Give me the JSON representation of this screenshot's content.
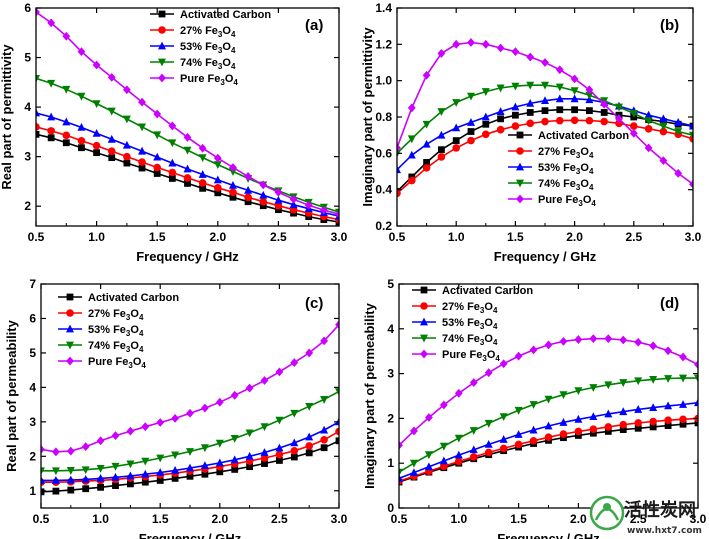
{
  "chart_data": [
    {
      "type": "line",
      "panel": "(a)",
      "xlabel": "Frequency / GHz",
      "ylabel": "Real part of permittivity",
      "xlim": [
        0.5,
        3.0
      ],
      "ylim": [
        1.6,
        6.0
      ],
      "xticks": [
        "0.5",
        "1.0",
        "1.5",
        "2.0",
        "2.5",
        "3.0"
      ],
      "yticks": [
        "2",
        "3",
        "4",
        "5",
        "6"
      ],
      "legend_position": "top-center",
      "x": [
        0.5,
        0.625,
        0.75,
        0.875,
        1.0,
        1.125,
        1.25,
        1.375,
        1.5,
        1.625,
        1.75,
        1.875,
        2.0,
        2.125,
        2.25,
        2.375,
        2.5,
        2.625,
        2.75,
        2.875,
        3.0
      ],
      "series": [
        {
          "name": "Activated Carbon",
          "color": "#000000",
          "marker": "square",
          "values": [
            3.45,
            3.38,
            3.28,
            3.18,
            3.08,
            2.98,
            2.87,
            2.77,
            2.66,
            2.56,
            2.46,
            2.36,
            2.27,
            2.18,
            2.09,
            2.01,
            1.93,
            1.86,
            1.79,
            1.73,
            1.68
          ]
        },
        {
          "name": "27% Fe3O4",
          "color": "#ff0000",
          "marker": "circle",
          "values": [
            3.6,
            3.52,
            3.43,
            3.32,
            3.22,
            3.11,
            3.0,
            2.89,
            2.78,
            2.68,
            2.57,
            2.47,
            2.37,
            2.28,
            2.18,
            2.09,
            2.01,
            1.93,
            1.86,
            1.79,
            1.73
          ]
        },
        {
          "name": "53% Fe3O4",
          "color": "#0000ff",
          "marker": "triangle-up",
          "values": [
            3.88,
            3.8,
            3.7,
            3.59,
            3.47,
            3.35,
            3.23,
            3.11,
            2.99,
            2.87,
            2.75,
            2.64,
            2.53,
            2.42,
            2.32,
            2.22,
            2.12,
            2.03,
            1.95,
            1.87,
            1.8
          ]
        },
        {
          "name": "74% Fe3O4",
          "color": "#008000",
          "marker": "triangle-down",
          "values": [
            4.58,
            4.48,
            4.36,
            4.22,
            4.07,
            3.92,
            3.76,
            3.6,
            3.44,
            3.28,
            3.13,
            2.98,
            2.84,
            2.7,
            2.56,
            2.43,
            2.31,
            2.19,
            2.08,
            1.98,
            1.88
          ]
        },
        {
          "name": "Pure Fe3O4",
          "color": "#cc00ff",
          "marker": "diamond",
          "values": [
            5.92,
            5.7,
            5.43,
            5.12,
            4.85,
            4.6,
            4.35,
            4.1,
            3.86,
            3.62,
            3.39,
            3.17,
            2.97,
            2.78,
            2.6,
            2.43,
            2.28,
            2.14,
            2.02,
            1.92,
            1.84
          ]
        }
      ]
    },
    {
      "type": "line",
      "panel": "(b)",
      "xlabel": "Frequency / GHz",
      "ylabel": "Imaginary part of permittivity",
      "xlim": [
        0.5,
        3.0
      ],
      "ylim": [
        0.2,
        1.4
      ],
      "xticks": [
        "0.5",
        "1.0",
        "1.5",
        "2.0",
        "2.5",
        "3.0"
      ],
      "yticks": [
        "0.2",
        "0.4",
        "0.6",
        "0.8",
        "1.0",
        "1.2",
        "1.4"
      ],
      "legend_position": "lower-left",
      "x": [
        0.5,
        0.625,
        0.75,
        0.875,
        1.0,
        1.125,
        1.25,
        1.375,
        1.5,
        1.625,
        1.75,
        1.875,
        2.0,
        2.125,
        2.25,
        2.375,
        2.5,
        2.625,
        2.75,
        2.875,
        3.0
      ],
      "series": [
        {
          "name": "Activated Carbon",
          "color": "#000000",
          "marker": "square",
          "values": [
            0.39,
            0.47,
            0.55,
            0.62,
            0.67,
            0.72,
            0.76,
            0.79,
            0.81,
            0.825,
            0.835,
            0.84,
            0.84,
            0.835,
            0.825,
            0.81,
            0.8,
            0.785,
            0.775,
            0.76,
            0.75
          ]
        },
        {
          "name": "27% Fe3O4",
          "color": "#ff0000",
          "marker": "circle",
          "values": [
            0.38,
            0.45,
            0.52,
            0.58,
            0.63,
            0.67,
            0.705,
            0.73,
            0.75,
            0.765,
            0.775,
            0.78,
            0.782,
            0.78,
            0.775,
            0.765,
            0.75,
            0.735,
            0.72,
            0.705,
            0.68
          ]
        },
        {
          "name": "53% Fe3O4",
          "color": "#0000ff",
          "marker": "triangle-up",
          "values": [
            0.51,
            0.59,
            0.65,
            0.7,
            0.74,
            0.77,
            0.8,
            0.83,
            0.855,
            0.875,
            0.89,
            0.9,
            0.9,
            0.895,
            0.88,
            0.86,
            0.835,
            0.81,
            0.79,
            0.77,
            0.75
          ]
        },
        {
          "name": "74% Fe3O4",
          "color": "#008000",
          "marker": "triangle-down",
          "values": [
            0.6,
            0.68,
            0.76,
            0.83,
            0.88,
            0.915,
            0.94,
            0.96,
            0.97,
            0.975,
            0.975,
            0.965,
            0.945,
            0.92,
            0.89,
            0.855,
            0.82,
            0.78,
            0.75,
            0.72,
            0.7
          ]
        },
        {
          "name": "Pure Fe3O4",
          "color": "#cc00ff",
          "marker": "diamond",
          "values": [
            0.63,
            0.85,
            1.03,
            1.15,
            1.2,
            1.21,
            1.2,
            1.18,
            1.16,
            1.13,
            1.1,
            1.06,
            1.01,
            0.95,
            0.87,
            0.79,
            0.71,
            0.63,
            0.56,
            0.49,
            0.43
          ]
        }
      ]
    },
    {
      "type": "line",
      "panel": "(c)",
      "xlabel": "Frequency / GHz",
      "ylabel": "Real part of permeability",
      "xlim": [
        0.5,
        3.0
      ],
      "ylim": [
        0.5,
        7.0
      ],
      "xticks": [
        "0.5",
        "1.0",
        "1.5",
        "2.0",
        "2.5",
        "3.0"
      ],
      "yticks": [
        "1",
        "2",
        "3",
        "4",
        "5",
        "6",
        "7"
      ],
      "legend_position": "top-left",
      "x": [
        0.5,
        0.625,
        0.75,
        0.875,
        1.0,
        1.125,
        1.25,
        1.375,
        1.5,
        1.625,
        1.75,
        1.875,
        2.0,
        2.125,
        2.25,
        2.375,
        2.5,
        2.625,
        2.75,
        2.875,
        3.0
      ],
      "series": [
        {
          "name": "Activated Carbon",
          "color": "#000000",
          "marker": "square",
          "values": [
            0.97,
            0.99,
            1.02,
            1.06,
            1.1,
            1.15,
            1.2,
            1.25,
            1.3,
            1.36,
            1.42,
            1.48,
            1.55,
            1.62,
            1.7,
            1.79,
            1.88,
            1.98,
            2.1,
            2.25,
            2.45
          ]
        },
        {
          "name": "27% Fe3O4",
          "color": "#ff0000",
          "marker": "circle",
          "values": [
            1.25,
            1.25,
            1.26,
            1.28,
            1.3,
            1.33,
            1.37,
            1.41,
            1.46,
            1.51,
            1.57,
            1.63,
            1.7,
            1.78,
            1.86,
            1.95,
            2.05,
            2.16,
            2.3,
            2.48,
            2.72
          ]
        },
        {
          "name": "53% Fe3O4",
          "color": "#0000ff",
          "marker": "triangle-up",
          "values": [
            1.3,
            1.3,
            1.31,
            1.33,
            1.36,
            1.39,
            1.43,
            1.48,
            1.53,
            1.59,
            1.66,
            1.73,
            1.81,
            1.9,
            2.0,
            2.11,
            2.24,
            2.39,
            2.56,
            2.76,
            3.0
          ]
        },
        {
          "name": "74% Fe3O4",
          "color": "#008000",
          "marker": "triangle-down",
          "values": [
            1.58,
            1.58,
            1.59,
            1.61,
            1.65,
            1.71,
            1.78,
            1.86,
            1.95,
            2.04,
            2.14,
            2.25,
            2.38,
            2.52,
            2.68,
            2.86,
            3.05,
            3.25,
            3.45,
            3.65,
            3.88
          ]
        },
        {
          "name": "Pure Fe3O4",
          "color": "#cc00ff",
          "marker": "diamond",
          "values": [
            2.2,
            2.13,
            2.15,
            2.28,
            2.45,
            2.6,
            2.73,
            2.86,
            2.98,
            3.1,
            3.25,
            3.4,
            3.57,
            3.77,
            3.98,
            4.2,
            4.45,
            4.72,
            5.0,
            5.35,
            5.82
          ]
        }
      ]
    },
    {
      "type": "line",
      "panel": "(d)",
      "xlabel": "Frequency / GHz",
      "ylabel": "Imaginary part of permeability",
      "xlim": [
        0.5,
        3.0
      ],
      "ylim": [
        0.0,
        5.0
      ],
      "xticks": [
        "0.5",
        "1.0",
        "1.5",
        "2.0",
        "2.5",
        "3.0"
      ],
      "yticks": [
        "0",
        "1",
        "2",
        "3",
        "4",
        "5"
      ],
      "legend_position": "top-left",
      "x": [
        0.5,
        0.625,
        0.75,
        0.875,
        1.0,
        1.125,
        1.25,
        1.375,
        1.5,
        1.625,
        1.75,
        1.875,
        2.0,
        2.125,
        2.25,
        2.375,
        2.5,
        2.625,
        2.75,
        2.875,
        3.0
      ],
      "series": [
        {
          "name": "Activated Carbon",
          "color": "#000000",
          "marker": "square",
          "values": [
            0.58,
            0.69,
            0.8,
            0.9,
            1.0,
            1.1,
            1.19,
            1.28,
            1.36,
            1.44,
            1.51,
            1.57,
            1.62,
            1.67,
            1.71,
            1.75,
            1.78,
            1.81,
            1.84,
            1.87,
            1.9
          ]
        },
        {
          "name": "27% Fe3O4",
          "color": "#ff0000",
          "marker": "circle",
          "values": [
            0.6,
            0.71,
            0.82,
            0.93,
            1.04,
            1.14,
            1.24,
            1.33,
            1.42,
            1.5,
            1.58,
            1.65,
            1.71,
            1.76,
            1.81,
            1.86,
            1.9,
            1.93,
            1.96,
            1.98,
            2.0
          ]
        },
        {
          "name": "53% Fe3O4",
          "color": "#0000ff",
          "marker": "triangle-up",
          "values": [
            0.66,
            0.79,
            0.92,
            1.05,
            1.18,
            1.3,
            1.42,
            1.53,
            1.64,
            1.74,
            1.83,
            1.91,
            1.98,
            2.04,
            2.1,
            2.15,
            2.2,
            2.24,
            2.28,
            2.31,
            2.35
          ]
        },
        {
          "name": "74% Fe3O4",
          "color": "#008000",
          "marker": "triangle-down",
          "values": [
            0.8,
            1.0,
            1.19,
            1.38,
            1.56,
            1.73,
            1.89,
            2.04,
            2.18,
            2.31,
            2.43,
            2.53,
            2.62,
            2.69,
            2.75,
            2.8,
            2.84,
            2.87,
            2.89,
            2.9,
            2.9
          ]
        },
        {
          "name": "Pure Fe3O4",
          "color": "#cc00ff",
          "marker": "diamond",
          "values": [
            1.4,
            1.72,
            2.02,
            2.3,
            2.56,
            2.8,
            3.02,
            3.22,
            3.39,
            3.53,
            3.64,
            3.72,
            3.76,
            3.78,
            3.78,
            3.75,
            3.7,
            3.62,
            3.51,
            3.37,
            3.2
          ]
        }
      ]
    }
  ],
  "watermark": {
    "logo_text": "HXT7",
    "title": "活性炭网",
    "url": "www.hxt7.com"
  }
}
